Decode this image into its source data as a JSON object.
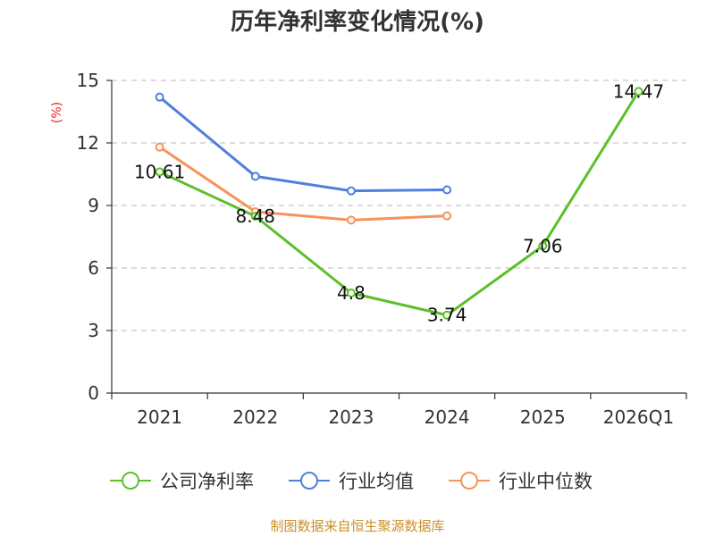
{
  "chart_data": {
    "type": "line",
    "title": "历年净利率变化情况(%)",
    "ylabel": "(%)",
    "xlabel": "",
    "categories": [
      "2021",
      "2022",
      "2023",
      "2024",
      "2025",
      "2026Q1"
    ],
    "ylim": [
      0,
      15
    ],
    "yticks": [
      0,
      3,
      6,
      9,
      12,
      15
    ],
    "grid": true,
    "legend_position": "bottom",
    "series": [
      {
        "name": "公司净利率",
        "color": "#5cc02a",
        "values": [
          10.61,
          8.48,
          4.8,
          3.74,
          7.06,
          14.47
        ],
        "labels": [
          "10.61",
          "8.48",
          "4.8",
          "3.74",
          "7.06",
          "14.47"
        ]
      },
      {
        "name": "行业均值",
        "color": "#4f7fdc",
        "values": [
          14.2,
          10.4,
          9.7,
          9.75,
          null,
          null
        ],
        "labels": []
      },
      {
        "name": "行业中位数",
        "color": "#f7925a",
        "values": [
          11.8,
          8.7,
          8.3,
          8.5,
          null,
          null
        ],
        "labels": []
      }
    ]
  },
  "source": "制图数据来自恒生聚源数据库"
}
